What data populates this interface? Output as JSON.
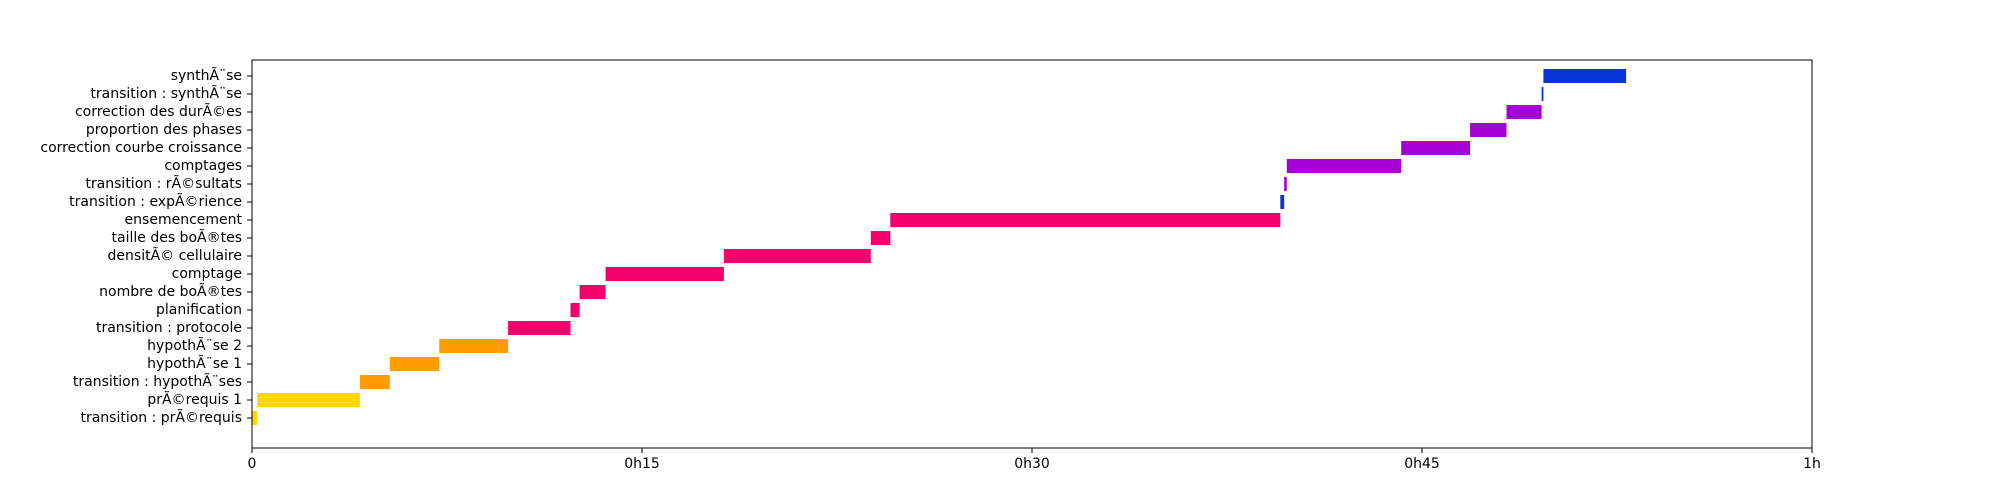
{
  "chart_data": {
    "type": "bar",
    "orientation": "horizontal-gantt",
    "title": "",
    "xlabel": "",
    "ylabel": "",
    "x_unit": "minutes",
    "xlim": [
      0,
      60
    ],
    "x_ticks": [
      {
        "value": 0,
        "label": "0"
      },
      {
        "value": 15,
        "label": "0h15"
      },
      {
        "value": 30,
        "label": "0h30"
      },
      {
        "value": 45,
        "label": "0h45"
      },
      {
        "value": 60,
        "label": "1h"
      }
    ],
    "grid": false,
    "legend": false,
    "categories": [
      "transition : prÃ©requis",
      "prÃ©requis 1",
      "transition : hypothÃ¨ses",
      "hypothÃ¨se 1",
      "hypothÃ¨se 2",
      "transition : protocole",
      "planification",
      "nombre de boÃ®tes",
      "comptage",
      "densitÃ© cellulaire",
      "taille des boÃ®tes",
      "ensemencement",
      "transition : expÃ©rience",
      "transition : rÃ©sultats",
      "comptages",
      "correction courbe croissance",
      "proportion des phases",
      "correction des durÃ©es",
      "transition : synthÃ¨se",
      "synthÃ¨se"
    ],
    "tasks": [
      {
        "label": "transition : prÃ©requis",
        "start": 0.0,
        "end": 0.2,
        "color": "#ffd700"
      },
      {
        "label": "prÃ©requis 1",
        "start": 0.2,
        "end": 4.15,
        "color": "#ffd700"
      },
      {
        "label": "transition : hypothÃ¨ses",
        "start": 4.15,
        "end": 5.3,
        "color": "#ff9c00"
      },
      {
        "label": "hypothÃ¨se 1",
        "start": 5.3,
        "end": 7.2,
        "color": "#ff9c00"
      },
      {
        "label": "hypothÃ¨se 2",
        "start": 7.2,
        "end": 9.85,
        "color": "#ff9c00"
      },
      {
        "label": "transition : protocole",
        "start": 9.85,
        "end": 12.25,
        "color": "#f2006c"
      },
      {
        "label": "planification",
        "start": 12.25,
        "end": 12.6,
        "color": "#f2006c"
      },
      {
        "label": "nombre de boÃ®tes",
        "start": 12.6,
        "end": 13.6,
        "color": "#f2006c"
      },
      {
        "label": "comptage",
        "start": 13.6,
        "end": 18.15,
        "color": "#f2006c"
      },
      {
        "label": "densitÃ© cellulaire",
        "start": 18.15,
        "end": 23.8,
        "color": "#f2006c"
      },
      {
        "label": "taille des boÃ®tes",
        "start": 23.8,
        "end": 24.55,
        "color": "#f2006c"
      },
      {
        "label": "ensemencement",
        "start": 24.55,
        "end": 39.55,
        "color": "#f2006c"
      },
      {
        "label": "transition : expÃ©rience",
        "start": 39.55,
        "end": 39.7,
        "color": "#0a35d6"
      },
      {
        "label": "transition : rÃ©sultats",
        "start": 39.7,
        "end": 39.8,
        "color": "#a500d6"
      },
      {
        "label": "comptages",
        "start": 39.8,
        "end": 44.2,
        "color": "#a500d6"
      },
      {
        "label": "correction courbe croissance",
        "start": 44.2,
        "end": 46.85,
        "color": "#a500d6"
      },
      {
        "label": "proportion des phases",
        "start": 46.85,
        "end": 48.25,
        "color": "#a500d6"
      },
      {
        "label": "correction des durÃ©es",
        "start": 48.25,
        "end": 49.6,
        "color": "#a500d6"
      },
      {
        "label": "transition : synthÃ¨se",
        "start": 49.6,
        "end": 49.67,
        "color": "#0a35d6"
      },
      {
        "label": "synthÃ¨se",
        "start": 49.67,
        "end": 52.85,
        "color": "#0a35d6"
      }
    ]
  }
}
